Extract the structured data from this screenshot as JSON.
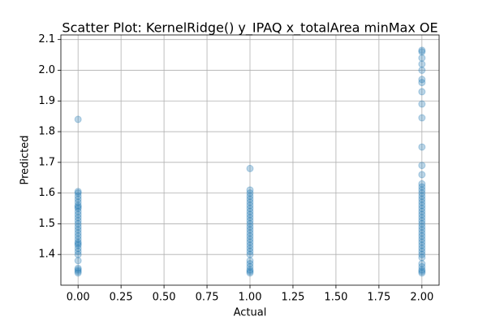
{
  "chart_data": {
    "type": "scatter",
    "title": "Scatter Plot: KernelRidge() y_IPAQ x_totalArea minMax OE",
    "xlabel": "Actual",
    "ylabel": "Predicted",
    "color": "#1f77b4",
    "grid": true,
    "xlim": [
      -0.1,
      2.1
    ],
    "ylim": [
      1.3,
      2.115
    ],
    "xticks": [
      {
        "value": 0,
        "label": "0.00"
      },
      {
        "value": 0.25,
        "label": "0.25"
      },
      {
        "value": 0.5,
        "label": "0.50"
      },
      {
        "value": 0.75,
        "label": "0.75"
      },
      {
        "value": 1,
        "label": "1.00"
      },
      {
        "value": 1.25,
        "label": "1.25"
      },
      {
        "value": 1.5,
        "label": "1.50"
      },
      {
        "value": 1.75,
        "label": "1.75"
      },
      {
        "value": 2,
        "label": "2.00"
      }
    ],
    "yticks": [
      1.4,
      1.5,
      1.6,
      1.7,
      1.8,
      1.9,
      {
        "value": 2,
        "label": "2.0"
      },
      2.1
    ],
    "x": [
      0,
      0,
      0,
      0,
      0,
      0,
      0,
      0,
      0,
      0,
      0,
      0,
      0,
      0,
      0,
      0,
      0,
      0,
      0,
      0,
      0,
      0,
      0,
      0,
      0,
      0,
      0,
      0,
      0,
      0,
      1,
      1,
      1,
      1,
      1,
      1,
      1,
      1,
      1,
      1,
      1,
      1,
      1,
      1,
      1,
      1,
      1,
      1,
      1,
      1,
      1,
      1,
      1,
      1,
      1,
      1,
      1,
      1,
      1,
      2,
      2,
      2,
      2,
      2,
      2,
      2,
      2,
      2,
      2,
      2,
      2,
      2,
      2,
      2,
      2,
      2,
      2,
      2,
      2,
      2,
      2,
      2,
      2,
      2,
      2,
      2,
      2,
      2,
      2,
      2,
      2,
      2,
      2,
      2,
      2,
      2,
      2,
      2,
      2,
      2,
      2,
      2
    ],
    "y": [
      1.34,
      1.345,
      1.35,
      1.355,
      1.38,
      1.4,
      1.41,
      1.42,
      1.43,
      1.435,
      1.44,
      1.45,
      1.46,
      1.47,
      1.48,
      1.49,
      1.5,
      1.51,
      1.52,
      1.53,
      1.54,
      1.55,
      1.555,
      1.56,
      1.57,
      1.58,
      1.59,
      1.6,
      1.605,
      1.84,
      1.34,
      1.345,
      1.35,
      1.36,
      1.37,
      1.38,
      1.4,
      1.41,
      1.42,
      1.43,
      1.44,
      1.45,
      1.46,
      1.47,
      1.48,
      1.49,
      1.5,
      1.51,
      1.52,
      1.53,
      1.54,
      1.55,
      1.56,
      1.57,
      1.58,
      1.59,
      1.6,
      1.61,
      1.68,
      1.34,
      1.345,
      1.35,
      1.36,
      1.37,
      1.39,
      1.4,
      1.41,
      1.42,
      1.43,
      1.44,
      1.45,
      1.46,
      1.47,
      1.48,
      1.49,
      1.5,
      1.51,
      1.52,
      1.53,
      1.54,
      1.55,
      1.56,
      1.57,
      1.58,
      1.59,
      1.6,
      1.61,
      1.62,
      1.63,
      1.66,
      1.69,
      1.75,
      1.845,
      1.89,
      1.93,
      1.96,
      1.97,
      2.0,
      2.02,
      2.04,
      2.06,
      2.065
    ]
  }
}
